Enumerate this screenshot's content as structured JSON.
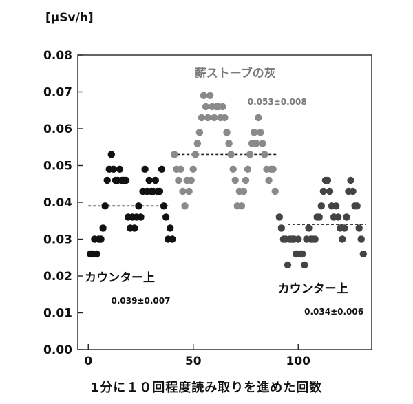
{
  "chart_data": {
    "type": "scatter",
    "ylabel": "[μSv/h]",
    "xlabel": "1分に１０回程度読み取りを進めた回数",
    "xlim": [
      -5,
      135
    ],
    "ylim": [
      0,
      0.08
    ],
    "xticks": [
      0,
      50,
      100
    ],
    "yticks": [
      0,
      0.01,
      0.02,
      0.03,
      0.04,
      0.05,
      0.06,
      0.07,
      0.08
    ],
    "grid": false,
    "series": [
      {
        "color": "#111111",
        "mean": 0.039,
        "mean_x_range": [
          0,
          39
        ],
        "points": [
          [
            1,
            0.026
          ],
          [
            2,
            0.026
          ],
          [
            3,
            0.03
          ],
          [
            4,
            0.026
          ],
          [
            5,
            0.03
          ],
          [
            6,
            0.03
          ],
          [
            7,
            0.033
          ],
          [
            8,
            0.039
          ],
          [
            9,
            0.046
          ],
          [
            10,
            0.049
          ],
          [
            11,
            0.053
          ],
          [
            12,
            0.049
          ],
          [
            13,
            0.046
          ],
          [
            14,
            0.046
          ],
          [
            15,
            0.049
          ],
          [
            16,
            0.046
          ],
          [
            17,
            0.046
          ],
          [
            18,
            0.046
          ],
          [
            19,
            0.036
          ],
          [
            20,
            0.033
          ],
          [
            21,
            0.036
          ],
          [
            22,
            0.033
          ],
          [
            23,
            0.036
          ],
          [
            24,
            0.039
          ],
          [
            25,
            0.036
          ],
          [
            26,
            0.043
          ],
          [
            27,
            0.049
          ],
          [
            28,
            0.043
          ],
          [
            29,
            0.046
          ],
          [
            30,
            0.043
          ],
          [
            31,
            0.043
          ],
          [
            32,
            0.046
          ],
          [
            33,
            0.043
          ],
          [
            34,
            0.043
          ],
          [
            35,
            0.049
          ],
          [
            36,
            0.039
          ],
          [
            37,
            0.036
          ],
          [
            38,
            0.03
          ],
          [
            39,
            0.033
          ],
          [
            40,
            0.03
          ]
        ]
      },
      {
        "color": "#8a8a8a",
        "mean": 0.053,
        "mean_x_range": [
          40,
          90
        ],
        "points": [
          [
            41,
            0.053
          ],
          [
            42,
            0.049
          ],
          [
            43,
            0.046
          ],
          [
            44,
            0.049
          ],
          [
            45,
            0.043
          ],
          [
            46,
            0.039
          ],
          [
            47,
            0.046
          ],
          [
            48,
            0.043
          ],
          [
            49,
            0.046
          ],
          [
            50,
            0.049
          ],
          [
            51,
            0.053
          ],
          [
            52,
            0.056
          ],
          [
            53,
            0.059
          ],
          [
            54,
            0.063
          ],
          [
            55,
            0.069
          ],
          [
            56,
            0.066
          ],
          [
            57,
            0.063
          ],
          [
            58,
            0.069
          ],
          [
            59,
            0.066
          ],
          [
            60,
            0.063
          ],
          [
            61,
            0.066
          ],
          [
            62,
            0.066
          ],
          [
            63,
            0.063
          ],
          [
            64,
            0.066
          ],
          [
            65,
            0.063
          ],
          [
            66,
            0.059
          ],
          [
            67,
            0.056
          ],
          [
            68,
            0.053
          ],
          [
            69,
            0.049
          ],
          [
            70,
            0.046
          ],
          [
            71,
            0.039
          ],
          [
            72,
            0.043
          ],
          [
            73,
            0.039
          ],
          [
            74,
            0.043
          ],
          [
            75,
            0.046
          ],
          [
            76,
            0.049
          ],
          [
            77,
            0.053
          ],
          [
            78,
            0.056
          ],
          [
            79,
            0.059
          ],
          [
            80,
            0.056
          ],
          [
            81,
            0.063
          ],
          [
            82,
            0.059
          ],
          [
            83,
            0.056
          ],
          [
            84,
            0.053
          ],
          [
            85,
            0.049
          ],
          [
            86,
            0.046
          ],
          [
            87,
            0.049
          ],
          [
            88,
            0.049
          ],
          [
            89,
            0.043
          ]
        ]
      },
      {
        "color": "#444444",
        "mean": 0.034,
        "mean_x_range": [
          95,
          132
        ],
        "points": [
          [
            91,
            0.036
          ],
          [
            92,
            0.033
          ],
          [
            93,
            0.03
          ],
          [
            94,
            0.03
          ],
          [
            95,
            0.023
          ],
          [
            96,
            0.03
          ],
          [
            97,
            0.03
          ],
          [
            98,
            0.03
          ],
          [
            99,
            0.026
          ],
          [
            100,
            0.03
          ],
          [
            101,
            0.026
          ],
          [
            102,
            0.026
          ],
          [
            103,
            0.023
          ],
          [
            104,
            0.03
          ],
          [
            105,
            0.033
          ],
          [
            106,
            0.03
          ],
          [
            107,
            0.03
          ],
          [
            108,
            0.03
          ],
          [
            109,
            0.036
          ],
          [
            110,
            0.036
          ],
          [
            111,
            0.039
          ],
          [
            112,
            0.043
          ],
          [
            113,
            0.046
          ],
          [
            114,
            0.046
          ],
          [
            115,
            0.043
          ],
          [
            116,
            0.039
          ],
          [
            117,
            0.036
          ],
          [
            118,
            0.039
          ],
          [
            119,
            0.036
          ],
          [
            120,
            0.033
          ],
          [
            121,
            0.03
          ],
          [
            122,
            0.033
          ],
          [
            123,
            0.036
          ],
          [
            124,
            0.043
          ],
          [
            125,
            0.046
          ],
          [
            126,
            0.043
          ],
          [
            127,
            0.039
          ],
          [
            128,
            0.039
          ],
          [
            129,
            0.033
          ],
          [
            130,
            0.03
          ],
          [
            131,
            0.026
          ]
        ]
      }
    ],
    "annotations": [
      {
        "id": "label-counter-1",
        "text": "カウンター上",
        "x": 15,
        "y": 0.0185,
        "weight": "bold",
        "size": 17,
        "color": "#111111"
      },
      {
        "id": "value-counter-1",
        "text": "0.039±0.007",
        "x": 25,
        "y": 0.0125,
        "weight": "bold",
        "size": 12,
        "color": "#111111"
      },
      {
        "id": "label-firewood-ash",
        "text": "薪ストーブの灰",
        "x": 70,
        "y": 0.074,
        "weight": "bold",
        "size": 17,
        "color": "#7a7a7a"
      },
      {
        "id": "value-firewood-ash",
        "text": "0.053±0.008",
        "x": 90,
        "y": 0.0665,
        "weight": "bold",
        "size": 12,
        "color": "#7a7a7a"
      },
      {
        "id": "label-counter-2",
        "text": "カウンター上",
        "x": 107,
        "y": 0.0155,
        "weight": "bold",
        "size": 17,
        "color": "#111111"
      },
      {
        "id": "value-counter-2",
        "text": "0.034±0.006",
        "x": 117,
        "y": 0.0095,
        "weight": "bold",
        "size": 12,
        "color": "#111111"
      }
    ]
  }
}
